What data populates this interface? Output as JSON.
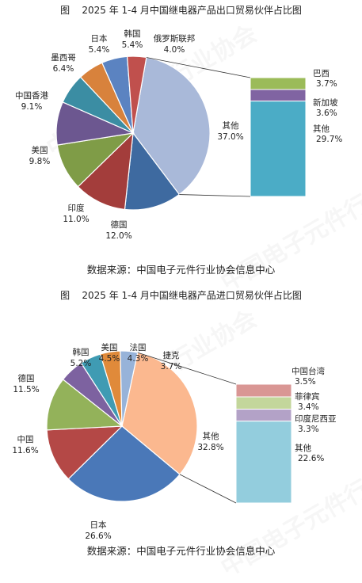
{
  "watermark": "中国电子元件行业协会",
  "charts": [
    {
      "id": "export",
      "title": "图    2025 年 1-4 月中国继电器产品出口贸易伙伴占比图",
      "source": "数据来源：中国电子元件行业协会信息中心"
    },
    {
      "id": "import",
      "title": "图    2025 年 1-4 月中国继电器产品进口贸易伙伴占比图",
      "source": "数据来源：中国电子元件行业协会信息中心"
    }
  ],
  "chart_data": [
    {
      "type": "pie",
      "title": "2025 年 1-4 月中国继电器产品出口贸易伙伴占比图",
      "unit": "%",
      "slices": [
        {
          "name": "其他",
          "value": 37.0,
          "label": "37.0%",
          "color": "#a9b9d9"
        },
        {
          "name": "德国",
          "value": 12.0,
          "label": "12.0%",
          "color": "#3e6aa0"
        },
        {
          "name": "印度",
          "value": 11.0,
          "label": "11.0%",
          "color": "#a33d3b"
        },
        {
          "name": "美国",
          "value": 9.8,
          "label": "9.8%",
          "color": "#7f9c47"
        },
        {
          "name": "中国香港",
          "value": 9.1,
          "label": "9.1%",
          "color": "#6c5790"
        },
        {
          "name": "墨西哥",
          "value": 6.4,
          "label": "6.4%",
          "color": "#3b8da3"
        },
        {
          "name": "日本",
          "value": 5.4,
          "label": "5.4%",
          "color": "#d8823c"
        },
        {
          "name": "韩国",
          "value": 5.4,
          "label": "5.4%",
          "color": "#5b83c1"
        },
        {
          "name": "俄罗斯联邦",
          "value": 4.0,
          "label": "4.0%",
          "color": "#c0504d"
        }
      ],
      "breakdown_of": "其他",
      "breakdown": [
        {
          "name": "巴西",
          "value": 3.7,
          "label": "3.7%",
          "color": "#9bbb59"
        },
        {
          "name": "新加坡",
          "value": 3.6,
          "label": "3.6%",
          "color": "#8064a2"
        },
        {
          "name": "其他",
          "value": 29.7,
          "label": "29.7%",
          "color": "#4bacc6"
        }
      ]
    },
    {
      "type": "pie",
      "title": "2025 年 1-4 月中国继电器产品进口贸易伙伴占比图",
      "unit": "%",
      "slices": [
        {
          "name": "其他",
          "value": 32.8,
          "label": "32.8%",
          "color": "#fbb88f"
        },
        {
          "name": "日本",
          "value": 26.6,
          "label": "26.6%",
          "color": "#4a78b8"
        },
        {
          "name": "中国",
          "value": 11.6,
          "label": "11.6%",
          "color": "#b44846"
        },
        {
          "name": "德国",
          "value": 11.5,
          "label": "11.5%",
          "color": "#93b25a"
        },
        {
          "name": "韩国",
          "value": 5.2,
          "label": "5.2%",
          "color": "#7d62a0"
        },
        {
          "name": "美国",
          "value": 4.5,
          "label": "4.5%",
          "color": "#3f9bb3"
        },
        {
          "name": "法国",
          "value": 4.3,
          "label": "4.3%",
          "color": "#e08a3a"
        },
        {
          "name": "捷克",
          "value": 3.7,
          "label": "3.7%",
          "color": "#97b3d9"
        }
      ],
      "breakdown_of": "其他",
      "breakdown": [
        {
          "name": "中国台湾",
          "value": 3.5,
          "label": "3.5%",
          "color": "#d99694"
        },
        {
          "name": "菲律宾",
          "value": 3.4,
          "label": "3.4%",
          "color": "#c3d69b"
        },
        {
          "name": "印度尼西亚",
          "value": 3.3,
          "label": "3.3%",
          "color": "#b3a2c7"
        },
        {
          "name": "其他",
          "value": 22.6,
          "label": "22.6%",
          "color": "#93cddd"
        }
      ]
    }
  ]
}
